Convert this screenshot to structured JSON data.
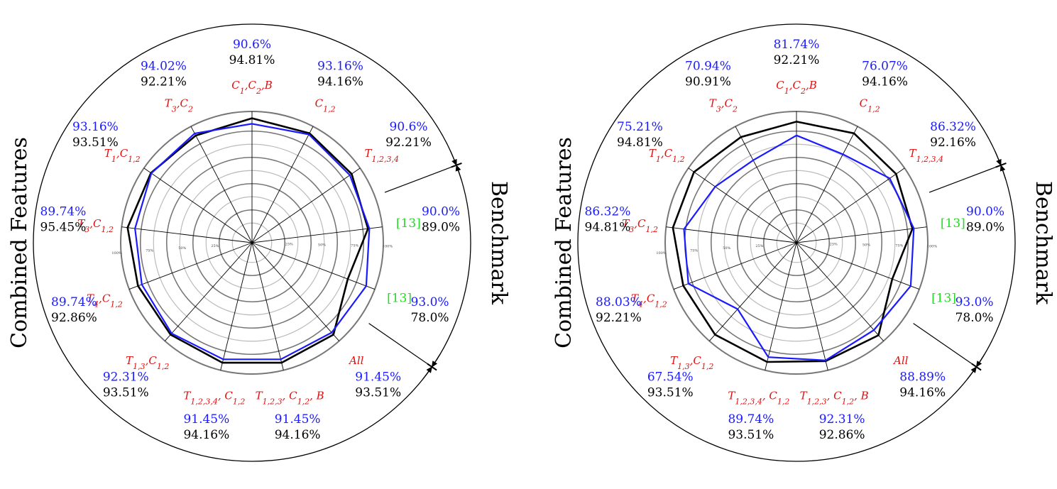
{
  "colors": {
    "blue_series": "#1a1aff",
    "black_series": "#000000",
    "feature_label": "#e01010",
    "reference_label": "#22dd22",
    "percent_blue": "#1a1aff",
    "percent_black": "#000000"
  },
  "side_labels": {
    "left": "Combined Features",
    "right": "Benchmark"
  },
  "ticks": [
    "25%",
    "50%",
    "75%",
    "100%"
  ],
  "chart_data": [
    {
      "type": "radar",
      "axes": [
        {
          "label": "C_{1},C_{2},B",
          "blue": 90.6,
          "black": 94.81
        },
        {
          "label": "C_{1,2}",
          "blue": 93.16,
          "black": 94.16
        },
        {
          "label": "T_{1,2,3,4}",
          "blue": 90.6,
          "black": 92.21
        },
        {
          "label": "[13]",
          "blue": 90.0,
          "black": 89.0
        },
        {
          "label": "[13]",
          "blue": 93.0,
          "black": 78.0
        },
        {
          "label": "All",
          "blue": 91.45,
          "black": 93.51
        },
        {
          "label": "T_{1,2,3}, C_{1,2}, B",
          "blue": 91.45,
          "black": 94.16
        },
        {
          "label": "T_{1,2,3,4}, C_{1,2}",
          "blue": 91.45,
          "black": 94.16
        },
        {
          "label": "T_{1,3},C_{1,2}",
          "blue": 92.31,
          "black": 93.51
        },
        {
          "label": "T_{4},C_{1,2}",
          "blue": 89.74,
          "black": 92.86
        },
        {
          "label": "T_{3},C_{1,2}",
          "blue": 89.74,
          "black": 95.45
        },
        {
          "label": "T_{1},C_{1,2}",
          "blue": 93.16,
          "black": 93.51
        },
        {
          "label": "T_{3},C_{2}",
          "blue": 94.02,
          "black": 92.21
        }
      ],
      "value_labels": [
        {
          "blue": "90.6%",
          "black": "94.81%"
        },
        {
          "blue": "93.16%",
          "black": "94.16%"
        },
        {
          "blue": "90.6%",
          "black": "92.21%"
        },
        {
          "blue": "90.0%",
          "black": "89.0%"
        },
        {
          "blue": "93.0%",
          "black": "78.0%"
        },
        {
          "blue": "91.45%",
          "black": "93.51%"
        },
        {
          "blue": "91.45%",
          "black": "94.16%"
        },
        {
          "blue": "91.45%",
          "black": "94.16%"
        },
        {
          "blue": "92.31%",
          "black": "93.51%"
        },
        {
          "blue": "89.74%",
          "black": "92.86%"
        },
        {
          "blue": "89.74%",
          "black": "95.45%"
        },
        {
          "blue": "93.16%",
          "black": "93.51%"
        },
        {
          "blue": "94.02%",
          "black": "92.21%"
        }
      ],
      "rlim": [
        0,
        100
      ],
      "grid": true
    },
    {
      "type": "radar",
      "axes": [
        {
          "label": "C_{1},C_{2},B",
          "blue": 81.74,
          "black": 92.21
        },
        {
          "label": "C_{1,2}",
          "blue": 76.07,
          "black": 94.16
        },
        {
          "label": "T_{1,2,3,4}",
          "blue": 86.32,
          "black": 92.16
        },
        {
          "label": "[13]",
          "blue": 90.0,
          "black": 89.0
        },
        {
          "label": "[13]",
          "blue": 93.0,
          "black": 78.0
        },
        {
          "label": "All",
          "blue": 88.89,
          "black": 94.16
        },
        {
          "label": "T_{1,2,3}, C_{1,2}, B",
          "blue": 92.31,
          "black": 92.86
        },
        {
          "label": "T_{1,2,3,4}, C_{1,2}",
          "blue": 89.74,
          "black": 93.51
        },
        {
          "label": "T_{1,3},C_{1,2}",
          "blue": 67.54,
          "black": 93.51
        },
        {
          "label": "T_{4},C_{1,2}",
          "blue": 88.03,
          "black": 92.21
        },
        {
          "label": "T_{3},C_{1,2}",
          "blue": 86.32,
          "black": 94.81
        },
        {
          "label": "T_{1},C_{1,2}",
          "blue": 75.21,
          "black": 94.81
        },
        {
          "label": "T_{3},C_{2}",
          "blue": 70.94,
          "black": 90.91
        }
      ],
      "value_labels": [
        {
          "blue": "81.74%",
          "black": "92.21%"
        },
        {
          "blue": "76.07%",
          "black": "94.16%"
        },
        {
          "blue": "86.32%",
          "black": "92.16%"
        },
        {
          "blue": "90.0%",
          "black": "89.0%"
        },
        {
          "blue": "93.0%",
          "black": "78.0%"
        },
        {
          "blue": "88.89%",
          "black": "94.16%"
        },
        {
          "blue": "92.31%",
          "black": "92.86%"
        },
        {
          "blue": "89.74%",
          "black": "93.51%"
        },
        {
          "blue": "67.54%",
          "black": "93.51%"
        },
        {
          "blue": "88.03%",
          "black": "92.21%"
        },
        {
          "blue": "86.32%",
          "black": "94.81%"
        },
        {
          "blue": "75.21%",
          "black": "94.81%"
        },
        {
          "blue": "70.94%",
          "black": "90.91%"
        }
      ],
      "rlim": [
        0,
        100
      ],
      "grid": true
    }
  ]
}
